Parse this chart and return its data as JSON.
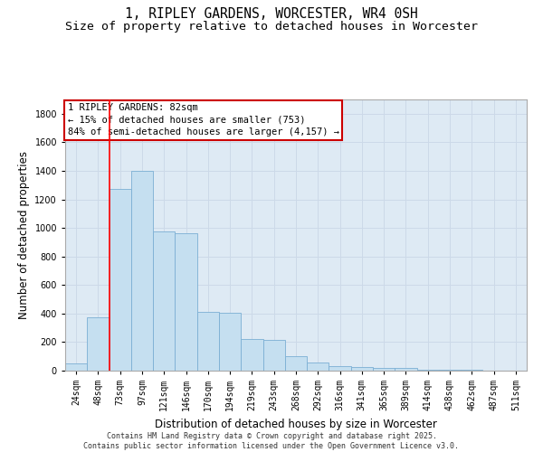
{
  "title_line1": "1, RIPLEY GARDENS, WORCESTER, WR4 0SH",
  "title_line2": "Size of property relative to detached houses in Worcester",
  "xlabel": "Distribution of detached houses by size in Worcester",
  "ylabel": "Number of detached properties",
  "categories": [
    "24sqm",
    "48sqm",
    "73sqm",
    "97sqm",
    "121sqm",
    "146sqm",
    "170sqm",
    "194sqm",
    "219sqm",
    "243sqm",
    "268sqm",
    "292sqm",
    "316sqm",
    "341sqm",
    "365sqm",
    "389sqm",
    "414sqm",
    "438sqm",
    "462sqm",
    "487sqm",
    "511sqm"
  ],
  "values": [
    50,
    375,
    1270,
    1400,
    975,
    960,
    410,
    405,
    220,
    215,
    100,
    55,
    30,
    28,
    20,
    18,
    8,
    6,
    4,
    3,
    2
  ],
  "bar_color": "#c5dff0",
  "bar_edge_color": "#7bafd4",
  "red_line_index": 2,
  "annotation_text": "1 RIPLEY GARDENS: 82sqm\n← 15% of detached houses are smaller (753)\n84% of semi-detached houses are larger (4,157) →",
  "annotation_box_color": "#ffffff",
  "annotation_box_edge": "#cc0000",
  "ylim": [
    0,
    1900
  ],
  "yticks": [
    0,
    200,
    400,
    600,
    800,
    1000,
    1200,
    1400,
    1600,
    1800
  ],
  "grid_color": "#ccd9e8",
  "bg_color": "#deeaf4",
  "footer_line1": "Contains HM Land Registry data © Crown copyright and database right 2025.",
  "footer_line2": "Contains public sector information licensed under the Open Government Licence v3.0.",
  "title_fontsize": 10.5,
  "subtitle_fontsize": 9.5,
  "tick_fontsize": 7,
  "label_fontsize": 8.5,
  "footer_fontsize": 6,
  "annotation_fontsize": 7.5
}
